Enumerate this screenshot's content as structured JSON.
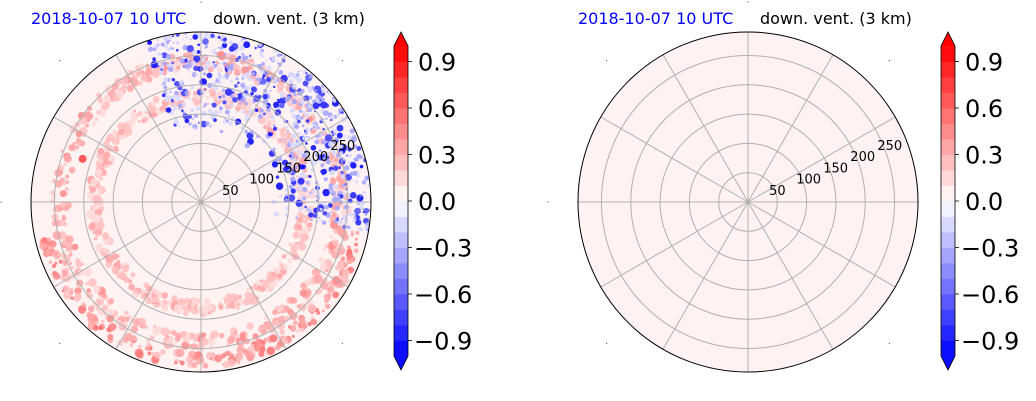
{
  "chart_data": [
    {
      "type": "heatmap",
      "projection": "polar",
      "title_left": "2018-10-07 10 UTC",
      "title_right": "down. vent. (3 km)",
      "radial_ticks": [
        50,
        100,
        150,
        200,
        250
      ],
      "radial_max": 290,
      "angular_gridlines_deg": 30,
      "grid": true,
      "colormap": "bwr",
      "colorbar": {
        "levels_min": -1.0,
        "levels_max": 1.0,
        "n_levels": 20,
        "extend": "both",
        "ticks": [
          "0.9",
          "0.6",
          "0.3",
          "0.0",
          "−0.3",
          "−0.6",
          "−0.9"
        ],
        "tick_values": [
          0.9,
          0.6,
          0.3,
          0.0,
          -0.3,
          -0.6,
          -0.9
        ]
      },
      "field_structures": [
        {
          "kind": "ring",
          "radius": 240,
          "width": 14,
          "value": 0.3
        },
        {
          "kind": "ring",
          "radius": 180,
          "width": 12,
          "value": 0.25
        },
        {
          "kind": "arc",
          "radius": 270,
          "width": 12,
          "from_deg": 100,
          "to_deg": 260,
          "value": 0.4
        },
        {
          "kind": "blob_region",
          "sector_from_deg": -20,
          "sector_to_deg": 100,
          "r_from": 120,
          "r_to": 290,
          "value": -0.9
        },
        {
          "kind": "spot",
          "azimuth_deg": 290,
          "radius": 215,
          "value": 0.6
        }
      ]
    },
    {
      "type": "heatmap",
      "projection": "polar",
      "title_left": "2018-10-07 10 UTC",
      "title_right": "down. vent. (3 km)",
      "radial_ticks": [
        50,
        100,
        150,
        200,
        250
      ],
      "radial_max": 290,
      "angular_gridlines_deg": 30,
      "grid": true,
      "colormap": "bwr",
      "uniform_value": 0.05,
      "colorbar": {
        "levels_min": -1.0,
        "levels_max": 1.0,
        "n_levels": 20,
        "extend": "both",
        "ticks": [
          "0.9",
          "0.6",
          "0.3",
          "0.0",
          "−0.3",
          "−0.6",
          "−0.9"
        ],
        "tick_values": [
          0.9,
          0.6,
          0.3,
          0.0,
          -0.3,
          -0.6,
          -0.9
        ]
      }
    }
  ]
}
